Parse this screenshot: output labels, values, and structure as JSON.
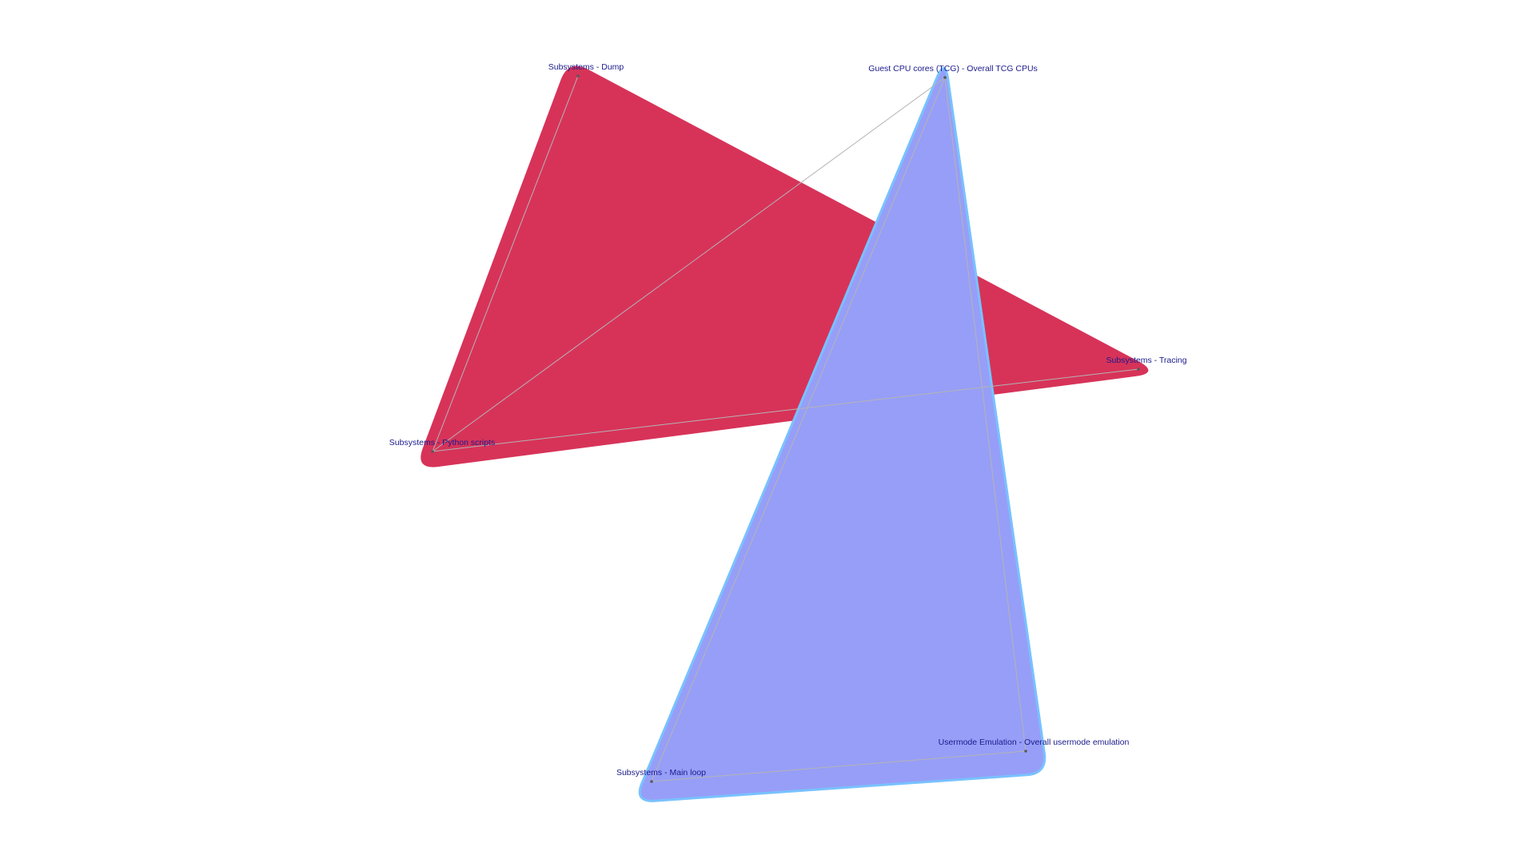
{
  "colors": {
    "background": "#ffffff",
    "edge": "#b4b4b4",
    "node": "#595959",
    "label": "#1a1a8c"
  },
  "hyperedges": [
    {
      "id": "he-red",
      "fill": "#d73359",
      "stroke": "#d73359",
      "members": [
        "subsystems-dump",
        "subsystems-python-scripts",
        "subsystems-tracing"
      ]
    },
    {
      "id": "he-blue",
      "fill": "#979ef7",
      "stroke": "#78c2ff",
      "members": [
        "guest-cpu-cores-tcg",
        "subsystems-main-loop",
        "usermode-emulation"
      ]
    }
  ],
  "nodes": [
    {
      "id": "subsystems-dump",
      "label": "Subsystems - Dump"
    },
    {
      "id": "guest-cpu-cores-tcg",
      "label": "Guest CPU cores (TCG) - Overall TCG CPUs"
    },
    {
      "id": "subsystems-tracing",
      "label": "Subsystems - Tracing"
    },
    {
      "id": "subsystems-python-scripts",
      "label": "Subsystems - Python scripts"
    },
    {
      "id": "usermode-emulation",
      "label": "Usermode Emulation - Overall usermode emulation"
    },
    {
      "id": "subsystems-main-loop",
      "label": "Subsystems - Main loop"
    }
  ],
  "edges": [
    {
      "source": "subsystems-dump",
      "target": "subsystems-python-scripts"
    },
    {
      "source": "subsystems-python-scripts",
      "target": "subsystems-tracing"
    },
    {
      "source": "subsystems-python-scripts",
      "target": "guest-cpu-cores-tcg"
    },
    {
      "source": "guest-cpu-cores-tcg",
      "target": "subsystems-main-loop"
    },
    {
      "source": "guest-cpu-cores-tcg",
      "target": "usermode-emulation"
    },
    {
      "source": "subsystems-main-loop",
      "target": "usermode-emulation"
    }
  ]
}
